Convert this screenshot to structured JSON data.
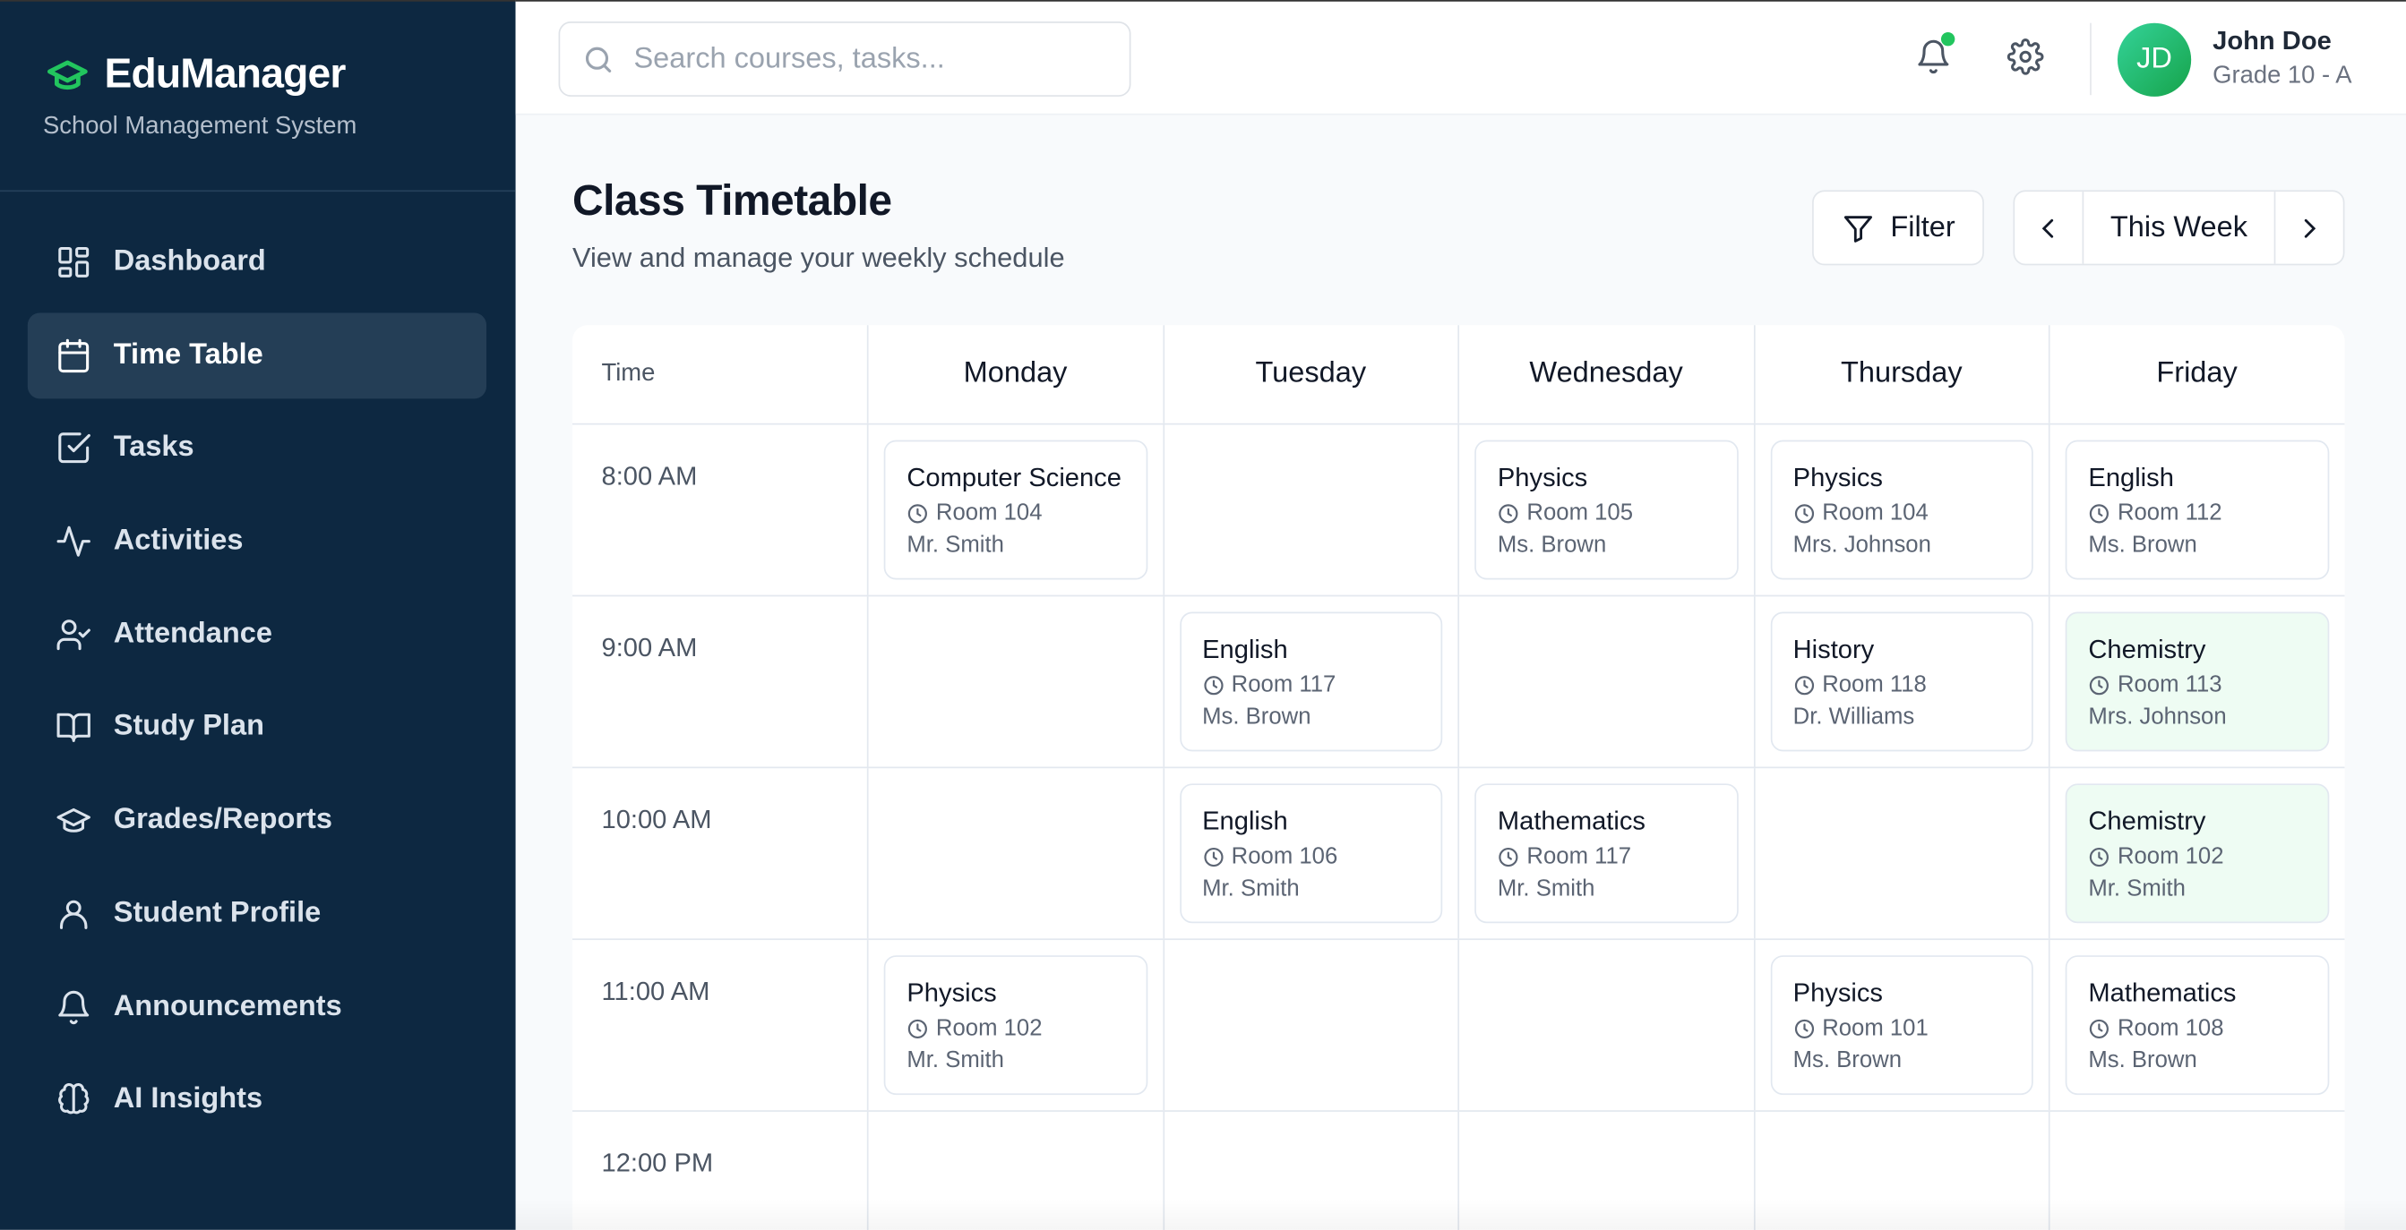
{
  "brand": {
    "name": "EduManager",
    "subtitle": "School Management System",
    "accent": "#22c55e"
  },
  "sidebar": {
    "items": [
      {
        "label": "Dashboard",
        "icon": "dashboard-icon"
      },
      {
        "label": "Time Table",
        "icon": "calendar-icon",
        "active": true
      },
      {
        "label": "Tasks",
        "icon": "checkbox-icon"
      },
      {
        "label": "Activities",
        "icon": "activity-icon"
      },
      {
        "label": "Attendance",
        "icon": "user-check-icon"
      },
      {
        "label": "Study Plan",
        "icon": "book-icon"
      },
      {
        "label": "Grades/Reports",
        "icon": "graduation-cap-icon"
      },
      {
        "label": "Student Profile",
        "icon": "user-icon"
      },
      {
        "label": "Announcements",
        "icon": "bell-icon"
      },
      {
        "label": "AI Insights",
        "icon": "brain-icon"
      }
    ]
  },
  "header": {
    "search_placeholder": "Search courses, tasks...",
    "user": {
      "initials": "JD",
      "name": "John Doe",
      "grade": "Grade 10 - A"
    }
  },
  "page": {
    "title": "Class Timetable",
    "description": "View and manage your weekly schedule",
    "filter_label": "Filter",
    "week_label": "This Week"
  },
  "timetable": {
    "time_header": "Time",
    "days": [
      "Monday",
      "Tuesday",
      "Wednesday",
      "Thursday",
      "Friday"
    ],
    "rows": [
      {
        "time": "8:00 AM",
        "cells": [
          {
            "subject": "Computer Science",
            "room": "Room 104",
            "teacher": "Mr. Smith"
          },
          null,
          {
            "subject": "Physics",
            "room": "Room 105",
            "teacher": "Ms. Brown"
          },
          {
            "subject": "Physics",
            "room": "Room 104",
            "teacher": "Mrs. Johnson"
          },
          {
            "subject": "English",
            "room": "Room 112",
            "teacher": "Ms. Brown"
          }
        ]
      },
      {
        "time": "9:00 AM",
        "cells": [
          null,
          {
            "subject": "English",
            "room": "Room 117",
            "teacher": "Ms. Brown"
          },
          null,
          {
            "subject": "History",
            "room": "Room 118",
            "teacher": "Dr. Williams"
          },
          {
            "subject": "Chemistry",
            "room": "Room 113",
            "teacher": "Mrs. Johnson",
            "highlight": true
          }
        ]
      },
      {
        "time": "10:00 AM",
        "cells": [
          null,
          {
            "subject": "English",
            "room": "Room 106",
            "teacher": "Mr. Smith"
          },
          {
            "subject": "Mathematics",
            "room": "Room 117",
            "teacher": "Mr. Smith"
          },
          null,
          {
            "subject": "Chemistry",
            "room": "Room 102",
            "teacher": "Mr. Smith",
            "highlight": true
          }
        ]
      },
      {
        "time": "11:00 AM",
        "cells": [
          {
            "subject": "Physics",
            "room": "Room 102",
            "teacher": "Mr. Smith"
          },
          null,
          null,
          {
            "subject": "Physics",
            "room": "Room 101",
            "teacher": "Ms. Brown"
          },
          {
            "subject": "Mathematics",
            "room": "Room 108",
            "teacher": "Ms. Brown"
          }
        ]
      },
      {
        "time": "12:00 PM",
        "cells": [
          null,
          null,
          null,
          null,
          null
        ]
      }
    ]
  }
}
